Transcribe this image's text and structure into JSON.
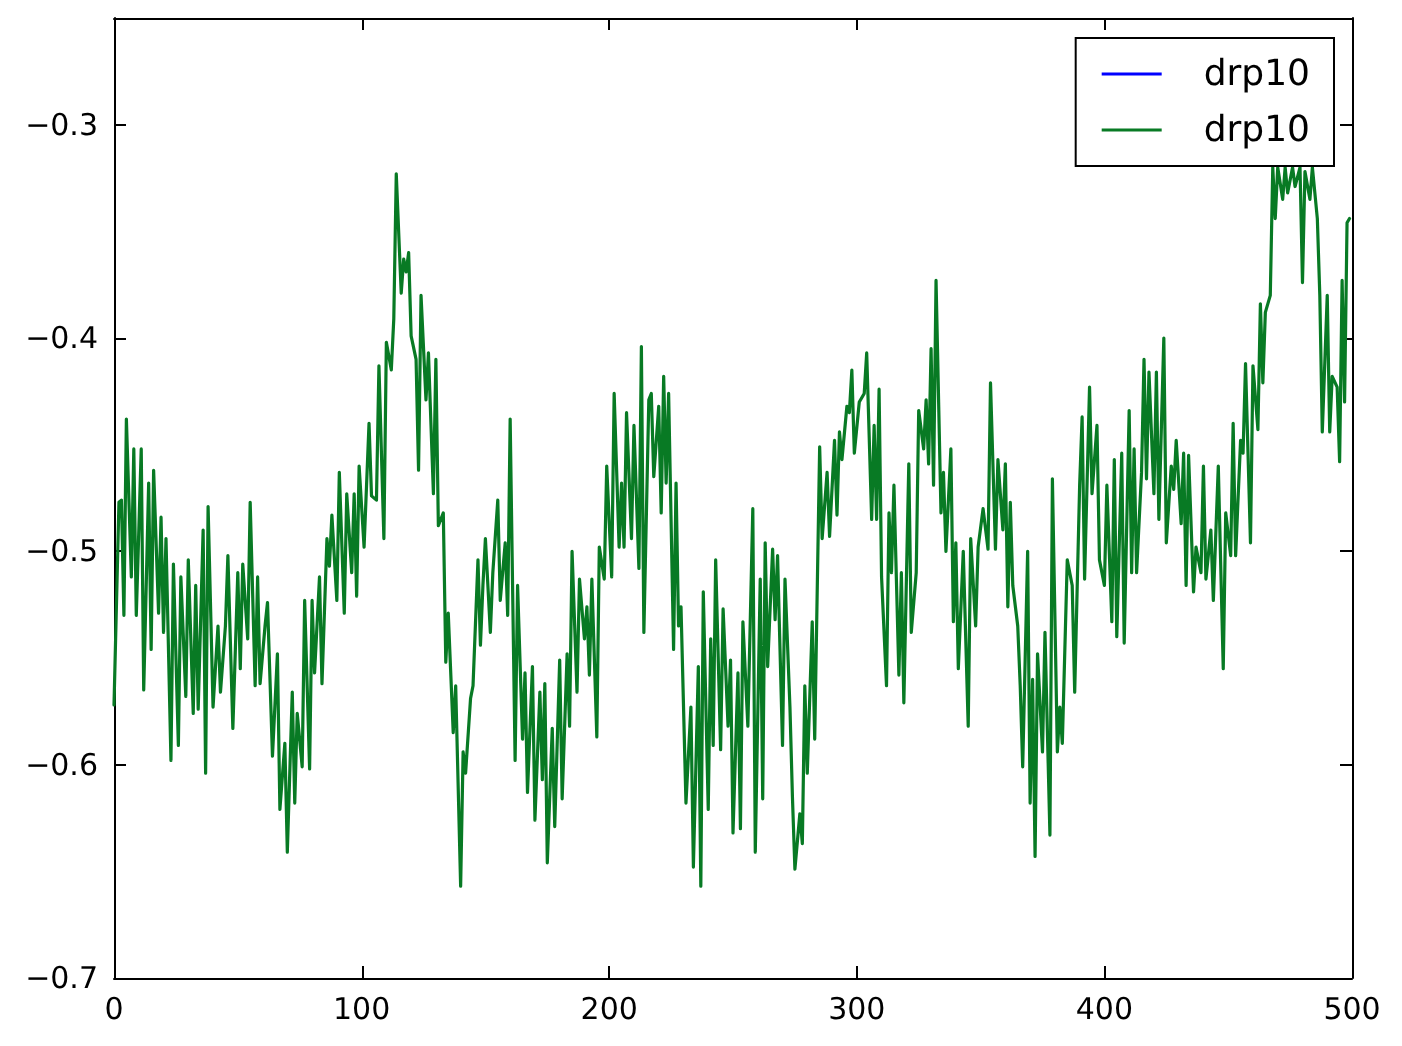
{
  "chart_data": {
    "type": "line",
    "xlim": [
      0,
      500
    ],
    "xticks": [
      0,
      100,
      200,
      300,
      400,
      500
    ],
    "ylim": [
      -0.7,
      -0.25
    ],
    "yticks": [
      -0.7,
      -0.6,
      -0.5,
      -0.4,
      -0.3
    ],
    "grid": false,
    "legend": "top right",
    "marker": "none",
    "line_style": "solid",
    "series": [
      {
        "name": "drp10",
        "color": "#0000ff"
      },
      {
        "name": "drp10",
        "color": "#087a24",
        "x": [
          0,
          2,
          3,
          4,
          5,
          7,
          8,
          9,
          11,
          12,
          14,
          15,
          16,
          18,
          19,
          20,
          21,
          23,
          24,
          26,
          27,
          29,
          30,
          32,
          33,
          34,
          36,
          37,
          38,
          40,
          42,
          43,
          45,
          46,
          48,
          50,
          51,
          52,
          54,
          55,
          57,
          58,
          59,
          61,
          62,
          64,
          66,
          67,
          69,
          70,
          72,
          73,
          74,
          76,
          77,
          79,
          80,
          81,
          83,
          84,
          86,
          87,
          88,
          90,
          91,
          93,
          94,
          96,
          97,
          98,
          99,
          101,
          103,
          104,
          106,
          107,
          109,
          110,
          112,
          113,
          114,
          116,
          117,
          118,
          119,
          120,
          122,
          123,
          124,
          126,
          127,
          129,
          130,
          131,
          133,
          134,
          135,
          137,
          138,
          140,
          141,
          142,
          144,
          145,
          147,
          148,
          149,
          150,
          152,
          153,
          155,
          156,
          158,
          159,
          160,
          162,
          163,
          165,
          166,
          167,
          169,
          170,
          172,
          173,
          174,
          175,
          177,
          178,
          180,
          181,
          183,
          184,
          185,
          187,
          188,
          190,
          191,
          192,
          193,
          195,
          196,
          198,
          199,
          201,
          202,
          204,
          205,
          206,
          207,
          209,
          210,
          212,
          213,
          214,
          216,
          217,
          218,
          220,
          221,
          222,
          223,
          224,
          226,
          227,
          228,
          229,
          231,
          233,
          234,
          236,
          237,
          238,
          240,
          241,
          242,
          243,
          245,
          246,
          248,
          249,
          250,
          252,
          253,
          254,
          256,
          258,
          259,
          261,
          262,
          263,
          264,
          266,
          267,
          268,
          270,
          271,
          273,
          274,
          275,
          277,
          278,
          279,
          280,
          282,
          283,
          285,
          286,
          288,
          289,
          291,
          292,
          293,
          294,
          296,
          297,
          298,
          299,
          301,
          303,
          304,
          306,
          307,
          308,
          309,
          310,
          312,
          313,
          314,
          315,
          317,
          318,
          319,
          321,
          322,
          324,
          325,
          327,
          328,
          329,
          330,
          331,
          332,
          334,
          335,
          336,
          338,
          339,
          340,
          341,
          343,
          345,
          346,
          348,
          349,
          351,
          353,
          354,
          356,
          357,
          359,
          360,
          361,
          362,
          363,
          365,
          366,
          367,
          369,
          370,
          371,
          372,
          373,
          375,
          376,
          378,
          379,
          381,
          382,
          383,
          385,
          387,
          388,
          390,
          391,
          392,
          394,
          395,
          397,
          398,
          400,
          401,
          403,
          404,
          405,
          407,
          408,
          410,
          411,
          412,
          413,
          415,
          416,
          417,
          418,
          420,
          421,
          422,
          424,
          425,
          427,
          428,
          429,
          431,
          432,
          433,
          434,
          436,
          437,
          439,
          440,
          441,
          443,
          444,
          446,
          448,
          449,
          451,
          452,
          453,
          455,
          456,
          457,
          459,
          460,
          462,
          463,
          464,
          465,
          467,
          468,
          469,
          470,
          472,
          473,
          474,
          476,
          477,
          479,
          480,
          481,
          483,
          484,
          486,
          487,
          488,
          490,
          491,
          492,
          494,
          495,
          496,
          497,
          498,
          499
        ],
        "values": [
          -0.572,
          -0.477,
          -0.476,
          -0.53,
          -0.438,
          -0.512,
          -0.452,
          -0.53,
          -0.452,
          -0.565,
          -0.468,
          -0.546,
          -0.462,
          -0.529,
          -0.484,
          -0.538,
          -0.494,
          -0.598,
          -0.506,
          -0.591,
          -0.512,
          -0.568,
          -0.504,
          -0.576,
          -0.516,
          -0.574,
          -0.49,
          -0.604,
          -0.479,
          -0.573,
          -0.535,
          -0.566,
          -0.535,
          -0.502,
          -0.583,
          -0.51,
          -0.555,
          -0.506,
          -0.541,
          -0.477,
          -0.563,
          -0.512,
          -0.562,
          -0.535,
          -0.524,
          -0.596,
          -0.548,
          -0.621,
          -0.59,
          -0.641,
          -0.566,
          -0.618,
          -0.576,
          -0.601,
          -0.523,
          -0.602,
          -0.523,
          -0.557,
          -0.512,
          -0.562,
          -0.494,
          -0.507,
          -0.483,
          -0.523,
          -0.463,
          -0.529,
          -0.473,
          -0.51,
          -0.473,
          -0.521,
          -0.46,
          -0.498,
          -0.44,
          -0.474,
          -0.476,
          -0.413,
          -0.494,
          -0.402,
          -0.415,
          -0.391,
          -0.323,
          -0.379,
          -0.363,
          -0.369,
          -0.36,
          -0.399,
          -0.41,
          -0.462,
          -0.38,
          -0.429,
          -0.407,
          -0.473,
          -0.41,
          -0.488,
          -0.482,
          -0.552,
          -0.529,
          -0.585,
          -0.563,
          -0.657,
          -0.594,
          -0.604,
          -0.569,
          -0.563,
          -0.504,
          -0.544,
          -0.516,
          -0.494,
          -0.538,
          -0.51,
          -0.476,
          -0.523,
          -0.496,
          -0.53,
          -0.438,
          -0.598,
          -0.516,
          -0.588,
          -0.557,
          -0.613,
          -0.554,
          -0.626,
          -0.566,
          -0.607,
          -0.562,
          -0.646,
          -0.583,
          -0.629,
          -0.551,
          -0.616,
          -0.548,
          -0.582,
          -0.5,
          -0.566,
          -0.513,
          -0.541,
          -0.526,
          -0.558,
          -0.513,
          -0.587,
          -0.498,
          -0.513,
          -0.46,
          -0.512,
          -0.426,
          -0.498,
          -0.468,
          -0.498,
          -0.435,
          -0.494,
          -0.441,
          -0.508,
          -0.404,
          -0.538,
          -0.429,
          -0.426,
          -0.465,
          -0.432,
          -0.482,
          -0.418,
          -0.468,
          -0.426,
          -0.546,
          -0.468,
          -0.535,
          -0.526,
          -0.618,
          -0.573,
          -0.648,
          -0.554,
          -0.657,
          -0.519,
          -0.621,
          -0.541,
          -0.591,
          -0.504,
          -0.593,
          -0.527,
          -0.582,
          -0.551,
          -0.632,
          -0.557,
          -0.63,
          -0.533,
          -0.582,
          -0.48,
          -0.641,
          -0.513,
          -0.616,
          -0.496,
          -0.554,
          -0.499,
          -0.532,
          -0.502,
          -0.591,
          -0.513,
          -0.573,
          -0.615,
          -0.649,
          -0.623,
          -0.637,
          -0.563,
          -0.604,
          -0.533,
          -0.588,
          -0.451,
          -0.494,
          -0.463,
          -0.493,
          -0.448,
          -0.483,
          -0.444,
          -0.457,
          -0.432,
          -0.435,
          -0.415,
          -0.454,
          -0.43,
          -0.426,
          -0.407,
          -0.485,
          -0.441,
          -0.485,
          -0.424,
          -0.512,
          -0.563,
          -0.482,
          -0.51,
          -0.469,
          -0.558,
          -0.51,
          -0.571,
          -0.459,
          -0.538,
          -0.51,
          -0.434,
          -0.452,
          -0.429,
          -0.459,
          -0.405,
          -0.469,
          -0.373,
          -0.482,
          -0.463,
          -0.5,
          -0.452,
          -0.533,
          -0.496,
          -0.555,
          -0.5,
          -0.582,
          -0.494,
          -0.535,
          -0.498,
          -0.48,
          -0.499,
          -0.421,
          -0.499,
          -0.457,
          -0.49,
          -0.459,
          -0.526,
          -0.477,
          -0.516,
          -0.535,
          -0.563,
          -0.601,
          -0.5,
          -0.618,
          -0.56,
          -0.643,
          -0.548,
          -0.594,
          -0.538,
          -0.633,
          -0.466,
          -0.594,
          -0.573,
          -0.59,
          -0.504,
          -0.516,
          -0.566,
          -0.469,
          -0.437,
          -0.513,
          -0.423,
          -0.473,
          -0.441,
          -0.504,
          -0.516,
          -0.469,
          -0.533,
          -0.457,
          -0.54,
          -0.454,
          -0.543,
          -0.434,
          -0.51,
          -0.452,
          -0.51,
          -0.463,
          -0.41,
          -0.466,
          -0.416,
          -0.473,
          -0.416,
          -0.485,
          -0.4,
          -0.496,
          -0.46,
          -0.471,
          -0.448,
          -0.487,
          -0.454,
          -0.516,
          -0.455,
          -0.519,
          -0.498,
          -0.51,
          -0.46,
          -0.513,
          -0.49,
          -0.523,
          -0.46,
          -0.555,
          -0.482,
          -0.502,
          -0.44,
          -0.502,
          -0.448,
          -0.454,
          -0.412,
          -0.496,
          -0.413,
          -0.443,
          -0.384,
          -0.421,
          -0.388,
          -0.38,
          -0.32,
          -0.344,
          -0.32,
          -0.335,
          -0.32,
          -0.332,
          -0.32,
          -0.329,
          -0.32,
          -0.374,
          -0.322,
          -0.335,
          -0.32,
          -0.344,
          -0.38,
          -0.444,
          -0.38,
          -0.444,
          -0.418,
          -0.423,
          -0.458,
          -0.373,
          -0.43,
          -0.346,
          -0.344
        ]
      }
    ]
  }
}
